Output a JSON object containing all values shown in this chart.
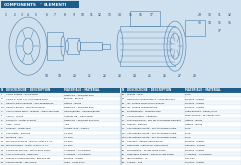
{
  "title_left": "COMPONENTS",
  "title_right": "ELEMENTI",
  "bg_color": "#cfe0ef",
  "header_color": "#1e5c8a",
  "header_text_color": "#ffffff",
  "row_bg_even": "#f0f7fd",
  "row_bg_odd": "#ffffff",
  "table_text_color": "#111111",
  "col_headers_left": [
    "N",
    "DESCRIZIONE - DESCRIPTION",
    "MATERIALE - MATERIAL"
  ],
  "col_headers_right": [
    "N",
    "DESCRIZIONE - DESCRIPTION",
    "MATERIALE - MATERIAL"
  ],
  "left_rows": [
    [
      "1",
      "Corpo pompa - Pump body",
      "Ghisa GG - 250/Cast iron"
    ],
    [
      "1*",
      "Corpo p. SAM +/+ SAM pump body",
      "Bronzo - Bronze"
    ],
    [
      "2",
      "Girante autolivellante - Self-draining im.",
      "Ottone - Brass"
    ],
    [
      "3**",
      "Girante Bronzo - Bronze impeller",
      "Ghisa GG - 250/Cast iron"
    ],
    [
      "4",
      "Anello usura disco - washer - Wear seal ring",
      "Ceram/graph - Ceramic/graph"
    ],
    [
      "5",
      "Anello - O'ring",
      "Acetato GR - GBS rubber"
    ],
    [
      "6",
      "Supporto - Motor bracket",
      "Ghisa GG - 250/Cast iron mm"
    ],
    [
      "7",
      "Asse - Shaft",
      "Inox"
    ],
    [
      "8",
      "Paraolio - radial seal",
      "Acciaio Inox - Indflex"
    ],
    [
      "9",
      "Cuscinetto - Bearing",
      "40 mm"
    ],
    [
      "10",
      "Piastrina - Key",
      "40 mm"
    ],
    [
      "11",
      "Motore monofase - motor IT&M 1.4.A1.",
      "40 mm"
    ],
    [
      "11*",
      "Motore trifase - motor IT&M 1.4.A1.",
      "40 mm"
    ],
    [
      "12",
      "Coperchio motore - Motor back cover",
      "Alluminio - Aluminium"
    ],
    [
      "13",
      "Anello di tenuta - Ring seal",
      "Alluminio - Aluminium"
    ],
    [
      "14",
      "Grasso e schiaffamento - Bearing fat",
      "Plastica - Plastic"
    ],
    [
      "15",
      "Capocromato - Tee screw",
      "Lega - Light alloy"
    ]
  ],
  "right_rows": [
    [
      "16",
      "Tenuta - Seal",
      "R 60"
    ],
    [
      "17",
      "Giunzione condensatore - Capacitor box",
      "Plastica - Plastic"
    ],
    [
      "18",
      "Inc. corona small Mono-phase1",
      "Plastica - Plastic"
    ],
    [
      "18**",
      "Inc. corona condensatore",
      "Plastica - Plastic"
    ],
    [
      "19",
      "Rivestimento - Terminal box",
      "Lega gomma - Epoxy/alloy"
    ],
    [
      "20",
      "Condensatore - Capacitor",
      "Polipropilene - Polypropylene"
    ],
    [
      "21",
      "Tuft membrane - Key for processing element",
      "Ottone - Brass"
    ],
    [
      "21*",
      "Guindo - silicone",
      "Ottone - Brass"
    ],
    [
      "22",
      "Vite autobloccante - Self-threading screw",
      "R 60"
    ],
    [
      "22*",
      "Vite autobloccante - Self-threading screw",
      "R 60"
    ],
    [
      "22**",
      "Vite autobloccante - Self-threading screw",
      "R 60"
    ],
    [
      "23",
      "Vite giro - Simple valve group",
      "Plastica - Plastic"
    ],
    [
      "24",
      "Ghiandaia - Fasten for cable press",
      "Gomma - Rubber"
    ],
    [
      "25",
      "Guarnizione - Screw cable press",
      "Plastica - Plastic"
    ],
    [
      "26",
      "Ghiandina pompa - Silicon screw pump",
      "Alluminio - Aluminium"
    ],
    [
      "27",
      "Ignis elastico - IV",
      "UNI 100"
    ],
    [
      "28",
      "Scalino - Fee",
      "Plastica - Plastic"
    ]
  ],
  "diagram_split": 0.535,
  "table_split": 0.465,
  "line_color": "#4a7fa8",
  "label_color": "#1a3a5c"
}
